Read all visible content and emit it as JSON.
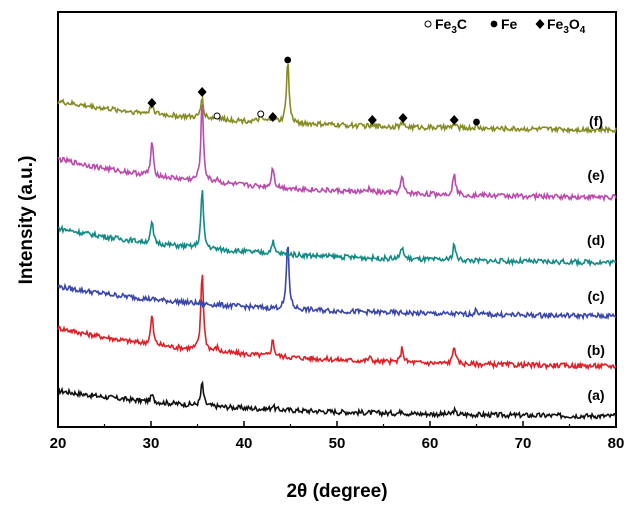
{
  "chart_data": {
    "type": "line",
    "title": "",
    "xlabel": "2θ (degree)",
    "ylabel": "Intensity (a.u.)",
    "xlim": [
      20,
      80
    ],
    "xticks": [
      20,
      30,
      40,
      50,
      60,
      70,
      80
    ],
    "grid": false,
    "legend": {
      "placement": "top-right",
      "entries": [
        {
          "marker": "open-circle",
          "label": "Fe3C",
          "base": "Fe",
          "sub": "3",
          "suffix": "C"
        },
        {
          "marker": "filled-circle",
          "label": "Fe",
          "base": "Fe",
          "sub": "",
          "suffix": ""
        },
        {
          "marker": "filled-diamond",
          "label": "Fe3O4",
          "base": "Fe",
          "sub": "3",
          "suffix": "O",
          "sub2": "4"
        }
      ]
    },
    "series": [
      {
        "name": "(a)",
        "color": "#111111",
        "start": 6.5,
        "end": 0.2,
        "peaks": [
          [
            30.1,
            1.6
          ],
          [
            35.5,
            5.5
          ],
          [
            43.1,
            1.0
          ],
          [
            57.0,
            0.8
          ],
          [
            62.6,
            1.0
          ]
        ]
      },
      {
        "name": "(b)",
        "color": "#e01f26",
        "start": 10.5,
        "end": 1.0,
        "peaks": [
          [
            30.1,
            7.0
          ],
          [
            35.5,
            19.0
          ],
          [
            37.1,
            1.0
          ],
          [
            43.1,
            4.0
          ],
          [
            53.5,
            1.0
          ],
          [
            57.0,
            3.5
          ],
          [
            62.6,
            4.5
          ]
        ]
      },
      {
        "name": "(c)",
        "color": "#3a46a8",
        "start": 7.5,
        "end": 0.2,
        "peaks": [
          [
            44.7,
            16.0
          ],
          [
            65.0,
            1.2
          ]
        ]
      },
      {
        "name": "(d)",
        "color": "#128b86",
        "start": 9.0,
        "end": 0.5,
        "peaks": [
          [
            30.1,
            5.0
          ],
          [
            35.5,
            14.0
          ],
          [
            43.1,
            3.0
          ],
          [
            57.0,
            3.0
          ],
          [
            62.6,
            4.0
          ]
        ]
      },
      {
        "name": "(e)",
        "color": "#bb4aad",
        "start": 10.0,
        "end": 0.5,
        "peaks": [
          [
            30.1,
            8.0
          ],
          [
            35.5,
            19.0
          ],
          [
            37.1,
            1.0
          ],
          [
            43.1,
            5.0
          ],
          [
            53.5,
            1.0
          ],
          [
            57.0,
            4.0
          ],
          [
            62.6,
            5.5
          ]
        ]
      },
      {
        "name": "(f)",
        "color": "#868c23",
        "start": 7.5,
        "end": 0.5,
        "peaks": [
          [
            30.1,
            3.0
          ],
          [
            35.5,
            5.0
          ],
          [
            37.1,
            1.0
          ],
          [
            41.8,
            1.5
          ],
          [
            43.1,
            2.0
          ],
          [
            44.7,
            15.0
          ],
          [
            57.0,
            1.0
          ],
          [
            62.6,
            1.0
          ],
          [
            65.0,
            0.5
          ]
        ]
      }
    ],
    "annotations": [
      {
        "marker": "filled-diamond",
        "x": 30.1
      },
      {
        "marker": "filled-diamond",
        "x": 35.5
      },
      {
        "marker": "open-circle",
        "x": 37.1
      },
      {
        "marker": "open-circle",
        "x": 41.8
      },
      {
        "marker": "filled-diamond",
        "x": 43.1
      },
      {
        "marker": "filled-circle",
        "x": 44.7
      },
      {
        "marker": "filled-diamond",
        "x": 53.8
      },
      {
        "marker": "filled-diamond",
        "x": 57.1
      },
      {
        "marker": "filled-diamond",
        "x": 62.6
      },
      {
        "marker": "filled-circle",
        "x": 65.0
      }
    ]
  }
}
